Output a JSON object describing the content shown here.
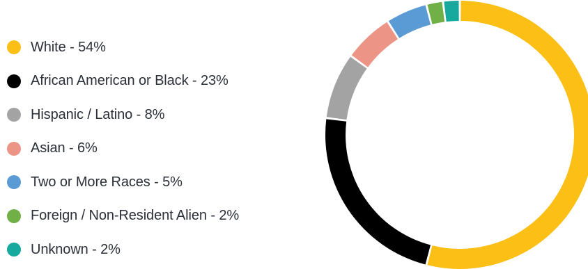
{
  "chart_data": {
    "type": "pie",
    "variant": "donut",
    "categories": [
      "White",
      "African American or Black",
      "Hispanic / Latino",
      "Asian",
      "Two or More Races",
      "Foreign / Non-Resident Alien",
      "Unknown"
    ],
    "values": [
      54,
      23,
      8,
      6,
      5,
      2,
      2
    ],
    "unit": "%",
    "colors": [
      "#fbbf16",
      "#000000",
      "#a3a3a3",
      "#ec9486",
      "#5b9bd5",
      "#71b047",
      "#18a99e"
    ],
    "legend_labels": [
      "White - 54%",
      "African American or Black - 23%",
      "Hispanic / Latino - 8%",
      "Asian - 6%",
      "Two or More Races - 5%",
      "Foreign / Non-Resident Alien - 2%",
      "Unknown - 2%"
    ],
    "legend_position": "left",
    "start": "top",
    "direction": "clockwise"
  }
}
